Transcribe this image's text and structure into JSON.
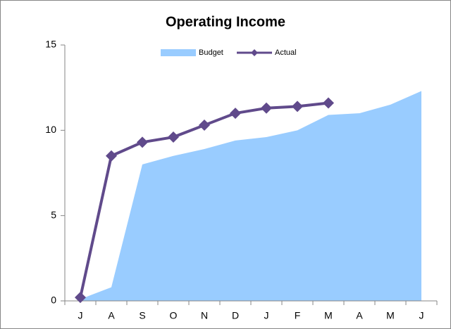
{
  "chart_data": {
    "type": "line",
    "title": "Operating Income",
    "categories": [
      "J",
      "A",
      "S",
      "O",
      "N",
      "D",
      "J",
      "F",
      "M",
      "A",
      "M",
      "J"
    ],
    "series": [
      {
        "name": "Budget",
        "type": "area",
        "color": "#99ccff",
        "values": [
          0.1,
          0.8,
          8.0,
          8.5,
          8.9,
          9.4,
          9.6,
          10.0,
          10.9,
          11.0,
          11.5,
          12.3
        ]
      },
      {
        "name": "Actual",
        "type": "line",
        "color": "#604a8b",
        "values": [
          0.2,
          8.5,
          9.3,
          9.6,
          10.3,
          11.0,
          11.3,
          11.4,
          11.6,
          null,
          null,
          null
        ]
      }
    ],
    "ylim": [
      0,
      15
    ],
    "yticks": [
      0,
      5,
      10,
      15
    ],
    "grid": false,
    "legend": "top"
  }
}
